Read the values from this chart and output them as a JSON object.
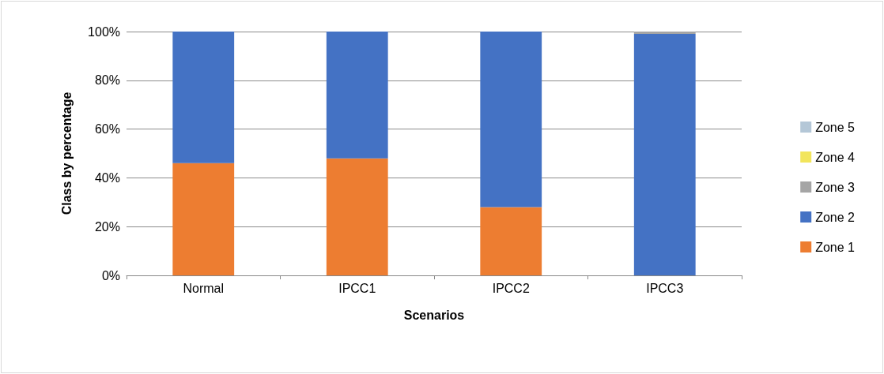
{
  "chart_data": {
    "type": "bar",
    "stacked": true,
    "xlabel": "Scenarios",
    "ylabel": "Class by percentage",
    "categories": [
      "Normal",
      "IPCC1",
      "IPCC2",
      "IPCC3"
    ],
    "series": [
      {
        "name": "Zone 1",
        "color": "#ed7d31",
        "values": [
          46,
          48,
          28,
          0
        ]
      },
      {
        "name": "Zone 2",
        "color": "#4472c4",
        "values": [
          54,
          52,
          72,
          99
        ]
      },
      {
        "name": "Zone 3",
        "color": "#a5a5a5",
        "values": [
          0,
          0,
          0,
          1
        ]
      },
      {
        "name": "Zone 4",
        "color": "#f2e55c",
        "values": [
          0,
          0,
          0,
          0
        ]
      },
      {
        "name": "Zone 5",
        "color": "#b4c7d7",
        "values": [
          0,
          0,
          0,
          0
        ]
      }
    ],
    "ylim": [
      0,
      100
    ],
    "yticks": [
      {
        "value": 0,
        "label": "0%"
      },
      {
        "value": 20,
        "label": "20%"
      },
      {
        "value": 40,
        "label": "40%"
      },
      {
        "value": 60,
        "label": "60%"
      },
      {
        "value": 80,
        "label": "80%"
      },
      {
        "value": 100,
        "label": "100%"
      }
    ],
    "grid": "y",
    "legend": "right"
  }
}
